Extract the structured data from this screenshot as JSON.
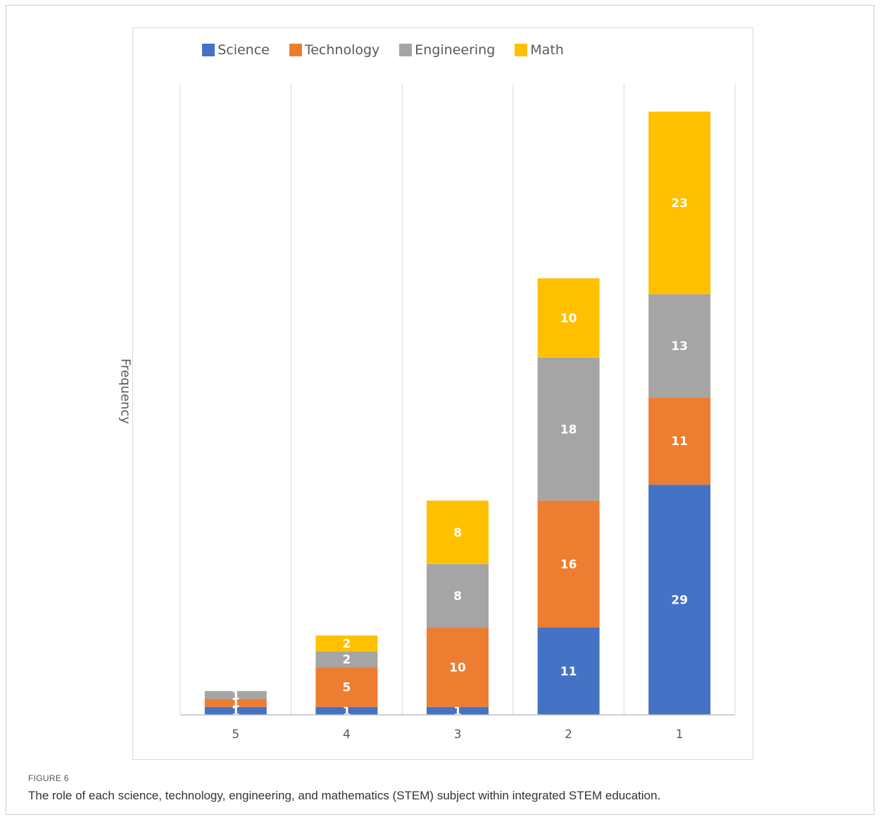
{
  "figure": {
    "label": "FIGURE 6",
    "caption": "The role of each science, technology, engineering, and mathematics (STEM) subject within integrated STEM education."
  },
  "chart_data": {
    "type": "bar",
    "stacked": true,
    "categories": [
      "5",
      "4",
      "3",
      "2",
      "1"
    ],
    "ylabel": "Frequency",
    "xlabel": "",
    "title": "",
    "legend_position": "top",
    "grid": "vertical",
    "series": [
      {
        "name": "Science",
        "color": "#4472C4",
        "values": [
          1,
          1,
          1,
          11,
          29
        ]
      },
      {
        "name": "Technology",
        "color": "#ED7D31",
        "values": [
          1,
          5,
          10,
          16,
          11
        ]
      },
      {
        "name": "Engineering",
        "color": "#A5A5A5",
        "values": [
          1,
          2,
          8,
          18,
          13
        ]
      },
      {
        "name": "Math",
        "color": "#FFC000",
        "values": [
          0,
          2,
          8,
          10,
          23
        ]
      }
    ]
  }
}
